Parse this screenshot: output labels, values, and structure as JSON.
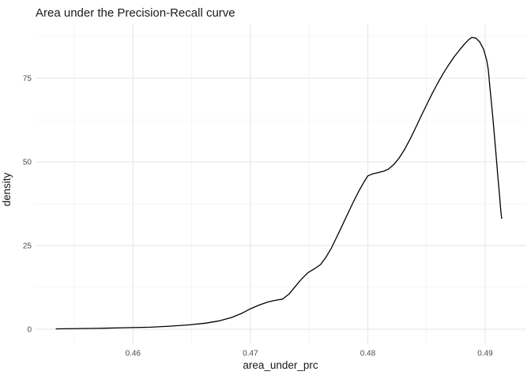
{
  "figure": {
    "background": "#FFFFFF"
  },
  "chart_data": {
    "type": "line",
    "style": "density-curve",
    "title": "Area under the Precision-Recall curve",
    "xlabel": "area_under_prc",
    "ylabel": "density",
    "xlim": [
      0.4517,
      0.4935
    ],
    "ylim": [
      -4.5,
      91.3
    ],
    "x_major_ticks": {
      "values": [
        0.46,
        0.47,
        0.48,
        0.49
      ],
      "labels": [
        "0.46",
        "0.47",
        "0.48",
        "0.49"
      ]
    },
    "x_minor_ticks": [
      0.455,
      0.465,
      0.475,
      0.485
    ],
    "y_major_ticks": {
      "values": [
        0,
        25,
        50,
        75
      ],
      "labels": [
        "0",
        "25",
        "50",
        "75"
      ]
    },
    "y_minor_ticks": [
      12.5,
      37.5,
      62.5,
      87.5
    ],
    "grid": "major+minor",
    "legend": "none",
    "line_color": "#000000",
    "grid_major_color": "#E7E7E7",
    "grid_minor_color": "#F1F1F1",
    "tick_label_color": "#4D4D4D",
    "title_color": "#1A1A1A",
    "axis_title_color": "#1A1A1A",
    "series": [
      {
        "name": "density of area_under_prc",
        "points": [
          [
            0.45342,
            0.1
          ],
          [
            0.45544,
            0.2
          ],
          [
            0.45745,
            0.3
          ],
          [
            0.45946,
            0.45
          ],
          [
            0.46148,
            0.6
          ],
          [
            0.46315,
            0.9
          ],
          [
            0.46483,
            1.3
          ],
          [
            0.46617,
            1.8
          ],
          [
            0.46738,
            2.5
          ],
          [
            0.46839,
            3.5
          ],
          [
            0.46919,
            4.6
          ],
          [
            0.47,
            6.1
          ],
          [
            0.47074,
            7.2
          ],
          [
            0.47154,
            8.2
          ],
          [
            0.47221,
            8.7
          ],
          [
            0.47275,
            9.0
          ],
          [
            0.47329,
            10.5
          ],
          [
            0.47383,
            12.8
          ],
          [
            0.47436,
            15.0
          ],
          [
            0.4749,
            16.9
          ],
          [
            0.47544,
            18.0
          ],
          [
            0.47597,
            19.3
          ],
          [
            0.47644,
            21.5
          ],
          [
            0.47691,
            24.3
          ],
          [
            0.47738,
            27.7
          ],
          [
            0.47785,
            31.2
          ],
          [
            0.47832,
            34.7
          ],
          [
            0.47879,
            38.2
          ],
          [
            0.47926,
            41.4
          ],
          [
            0.47966,
            43.9
          ],
          [
            0.48,
            45.8
          ],
          [
            0.4804,
            46.4
          ],
          [
            0.48087,
            46.8
          ],
          [
            0.48134,
            47.2
          ],
          [
            0.48174,
            47.8
          ],
          [
            0.48221,
            49.2
          ],
          [
            0.48268,
            51.2
          ],
          [
            0.48315,
            53.8
          ],
          [
            0.48362,
            56.9
          ],
          [
            0.48409,
            60.3
          ],
          [
            0.48456,
            63.8
          ],
          [
            0.48503,
            67.2
          ],
          [
            0.4855,
            70.5
          ],
          [
            0.48597,
            73.6
          ],
          [
            0.48644,
            76.5
          ],
          [
            0.48691,
            79.1
          ],
          [
            0.48738,
            81.5
          ],
          [
            0.48785,
            83.6
          ],
          [
            0.48826,
            85.3
          ],
          [
            0.48859,
            86.5
          ],
          [
            0.48886,
            87.2
          ],
          [
            0.48919,
            87.0
          ],
          [
            0.48953,
            85.9
          ],
          [
            0.48987,
            83.6
          ],
          [
            0.49013,
            80.4
          ],
          [
            0.49027,
            77.5
          ],
          [
            0.4904,
            72.5
          ],
          [
            0.49054,
            67.5
          ],
          [
            0.49067,
            62.5
          ],
          [
            0.49081,
            57.0
          ],
          [
            0.49094,
            51.5
          ],
          [
            0.49107,
            46.0
          ],
          [
            0.49121,
            40.5
          ],
          [
            0.49134,
            35.0
          ],
          [
            0.49141,
            33.0
          ]
        ]
      }
    ]
  }
}
